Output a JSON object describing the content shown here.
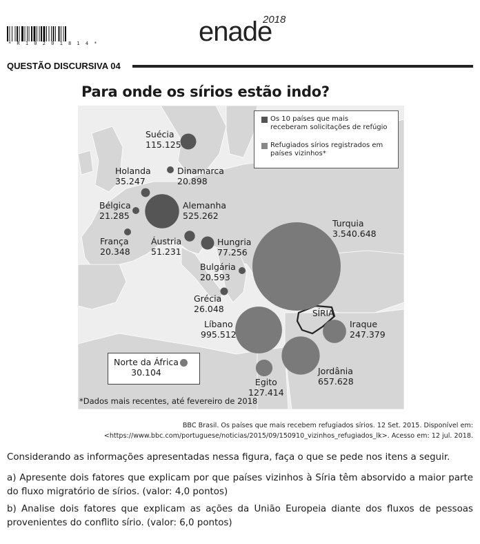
{
  "header": {
    "barcode_text": "* R 1 0 2 0 1 8 1 4 *",
    "brand": "enade",
    "brand_year": "2018",
    "question_title": "QUESTÃO DISCURSIVA 04"
  },
  "figure": {
    "title": "Para onde os sírios estão indo?",
    "legend": [
      {
        "text_line1": "Os 10 países que mais",
        "text_line2": "receberam solicitações de refúgio",
        "color": "#555555"
      },
      {
        "text_line1": "Refugiados sírios registrados em",
        "text_line2": "países vizinhos*",
        "color": "#888888"
      }
    ],
    "countries": [
      {
        "name": "Suécia",
        "value": "115.125",
        "group": "eu"
      },
      {
        "name": "Holanda",
        "value": "35.247",
        "group": "eu"
      },
      {
        "name": "Dinamarca",
        "value": "20.898",
        "group": "eu"
      },
      {
        "name": "Bélgica",
        "value": "21.285",
        "group": "eu"
      },
      {
        "name": "Alemanha",
        "value": "525.262",
        "group": "eu"
      },
      {
        "name": "França",
        "value": "20.348",
        "group": "eu"
      },
      {
        "name": "Áustria",
        "value": "51.231",
        "group": "eu"
      },
      {
        "name": "Hungria",
        "value": "77.256",
        "group": "eu"
      },
      {
        "name": "Bulgária",
        "value": "20.593",
        "group": "eu"
      },
      {
        "name": "Grécia",
        "value": "26.048",
        "group": "eu"
      },
      {
        "name": "Turquia",
        "value": "3.540.648",
        "group": "neighbor"
      },
      {
        "name": "Líbano",
        "value": "995.512",
        "group": "neighbor"
      },
      {
        "name": "Iraque",
        "value": "247.379",
        "group": "neighbor"
      },
      {
        "name": "Jordânia",
        "value": "657.628",
        "group": "neighbor"
      },
      {
        "name": "Egito",
        "value": "127.414",
        "group": "neighbor"
      },
      {
        "name": "Norte da África",
        "value": "30.104",
        "group": "neighbor"
      }
    ],
    "syria_label": "SÍRIA",
    "footnote": "*Dados mais recentes, até fevereiro de 2018",
    "colors": {
      "eu_bubble": "#555555",
      "neighbor_bubble": "#7a7a7a",
      "land": "#d9d9d9",
      "sea": "#f2f2f2"
    }
  },
  "source": {
    "line1": "BBC Brasil. Os países que mais recebem refugiados sírios. 12 Set. 2015. Disponível em:",
    "line2": "<https://www.bbc.com/portuguese/noticias/2015/09/150910_vizinhos_refugiados_lk>. Acesso em: 12 jul. 2018."
  },
  "text": {
    "intro": "Considerando as informações apresentadas nessa figura, faça o que se pede nos itens a seguir.",
    "item_a": "a) Apresente dois fatores que explicam por que países vizinhos à Síria têm absorvido a maior parte do fluxo migratório de sírios. (valor: 4,0 pontos)",
    "item_b": "b) Analise dois fatores que explicam as ações da União Europeia diante dos fluxos de pessoas provenientes do conflito sírio. (valor: 6,0 pontos)"
  }
}
